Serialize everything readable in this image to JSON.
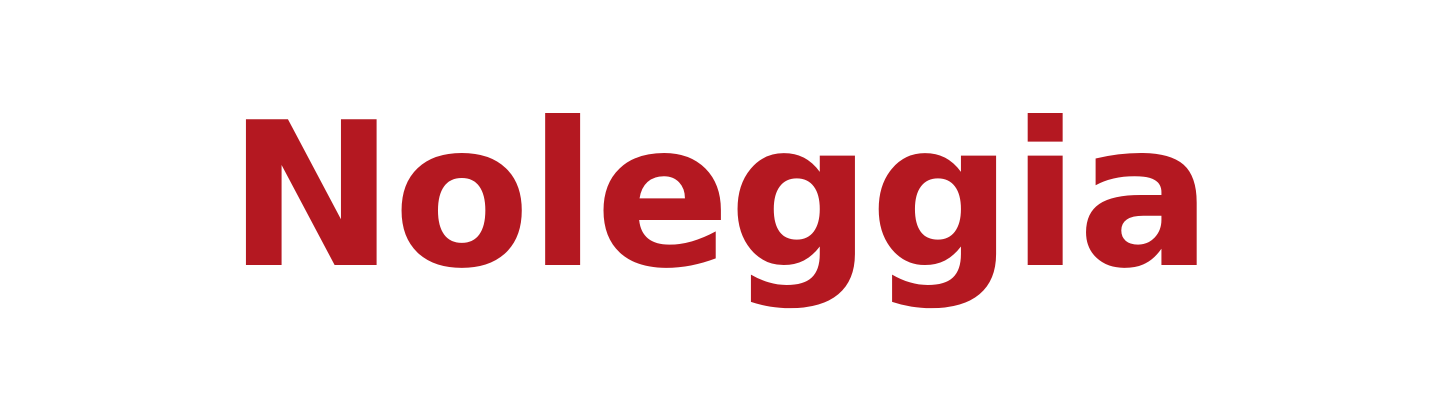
{
  "word": {
    "text": "Noleggia",
    "color": "#b41821"
  },
  "background_color": "#ffffff"
}
